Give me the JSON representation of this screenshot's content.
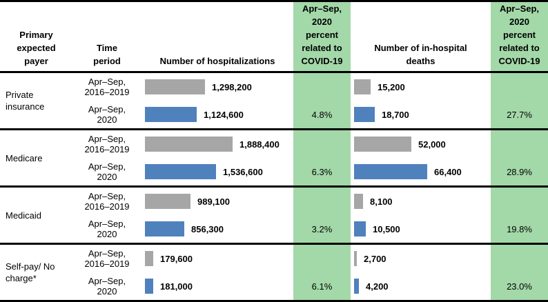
{
  "colors": {
    "green_bg": "#A3D8A8",
    "baseline_bar_gray": "#A6A6A6",
    "current_bar_blue": "#4F81BD",
    "rule_black": "#000000"
  },
  "header": {
    "payer": "Primary expected payer",
    "period": "Time period",
    "hospitalizations": "Number of hospitalizations",
    "covid_pct_hosp": "Apr–Sep, 2020 percent related to COVID-19",
    "deaths": "Number of in-hospital deaths",
    "covid_pct_deaths": "Apr–Sep, 2020 percent related to COVID-19"
  },
  "sections": [
    {
      "payer": "Private insurance",
      "rows": [
        {
          "period": "Apr–Sep, 2016–2019",
          "hosp_value": 1298200,
          "hosp_label": "1,298,200",
          "death_value": 15200,
          "death_label": "15,200"
        },
        {
          "period": "Apr–Sep, 2020",
          "hosp_value": 1124600,
          "hosp_label": "1,124,600",
          "death_value": 18700,
          "death_label": "18,700"
        }
      ],
      "hosp_covid_pct": "4.8%",
      "death_covid_pct": "27.7%"
    },
    {
      "payer": "Medicare",
      "rows": [
        {
          "period": "Apr–Sep, 2016–2019",
          "hosp_value": 1888400,
          "hosp_label": "1,888,400",
          "death_value": 52000,
          "death_label": "52,000"
        },
        {
          "period": "Apr–Sep, 2020",
          "hosp_value": 1536600,
          "hosp_label": "1,536,600",
          "death_value": 66400,
          "death_label": "66,400"
        }
      ],
      "hosp_covid_pct": "6.3%",
      "death_covid_pct": "28.9%"
    },
    {
      "payer": "Medicaid",
      "rows": [
        {
          "period": "Apr–Sep, 2016–2019",
          "hosp_value": 989100,
          "hosp_label": "989,100",
          "death_value": 8100,
          "death_label": "8,100"
        },
        {
          "period": "Apr–Sep, 2020",
          "hosp_value": 856300,
          "hosp_label": "856,300",
          "death_value": 10500,
          "death_label": "10,500"
        }
      ],
      "hosp_covid_pct": "3.2%",
      "death_covid_pct": "19.8%"
    },
    {
      "payer": "Self-pay/ No charge*",
      "rows": [
        {
          "period": "Apr–Sep, 2016–2019",
          "hosp_value": 179600,
          "hosp_label": "179,600",
          "death_value": 2700,
          "death_label": "2,700"
        },
        {
          "period": "Apr–Sep, 2020",
          "hosp_value": 181000,
          "hosp_label": "181,000",
          "death_value": 4200,
          "death_label": "4,200"
        }
      ],
      "hosp_covid_pct": "6.1%",
      "death_covid_pct": "23.0%"
    }
  ],
  "chart_data": [
    {
      "type": "bar",
      "title": "Number of hospitalizations",
      "orientation": "horizontal",
      "categories": [
        "Private insurance",
        "Medicare",
        "Medicaid",
        "Self-pay/No charge*"
      ],
      "series": [
        {
          "name": "Apr–Sep, 2016–2019",
          "color": "#A6A6A6",
          "values": [
            1298200,
            1888400,
            989100,
            179600
          ]
        },
        {
          "name": "Apr–Sep, 2020",
          "color": "#4F81BD",
          "values": [
            1124600,
            1536600,
            856300,
            181000
          ]
        }
      ],
      "annotations": {
        "apr_sep_2020_percent_related_to_covid19": [
          "4.8%",
          "6.3%",
          "3.2%",
          "6.1%"
        ]
      },
      "axis_max": 2000000,
      "grid": false,
      "legend": "none",
      "data_labels": true
    },
    {
      "type": "bar",
      "title": "Number of in-hospital deaths",
      "orientation": "horizontal",
      "categories": [
        "Private insurance",
        "Medicare",
        "Medicaid",
        "Self-pay/No charge*"
      ],
      "series": [
        {
          "name": "Apr–Sep, 2016–2019",
          "color": "#A6A6A6",
          "values": [
            15200,
            52000,
            8100,
            2700
          ]
        },
        {
          "name": "Apr–Sep, 2020",
          "color": "#4F81BD",
          "values": [
            18700,
            66400,
            10500,
            4200
          ]
        }
      ],
      "annotations": {
        "apr_sep_2020_percent_related_to_covid19": [
          "27.7%",
          "28.9%",
          "19.8%",
          "23.0%"
        ]
      },
      "axis_max": 70000,
      "grid": false,
      "legend": "none",
      "data_labels": true
    }
  ]
}
